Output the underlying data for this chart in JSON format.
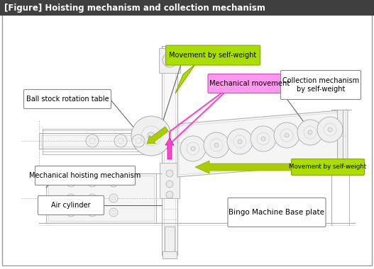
{
  "title": "[Figure] Hoisting mechanism and collection mechanism",
  "title_bg": "#404040",
  "title_color": "#ffffff",
  "fig_bg": "#ffffff",
  "figsize": [
    5.27,
    3.8
  ],
  "dpi": 100,
  "labels": {
    "movement_top": "Movement by self-weight",
    "mechanical_movement": "Mechanical movement",
    "collection_mechanism": "Collection mechanism\nby self-weight",
    "ball_stock": "Ball stock rotation table",
    "movement_right": "Movement by self-weight",
    "mechanical_hoisting": "Mechanical hoisting mechanism",
    "air_cylinder": "Air cylinder",
    "bingo_machine": "Bingo Machine Base plate"
  }
}
